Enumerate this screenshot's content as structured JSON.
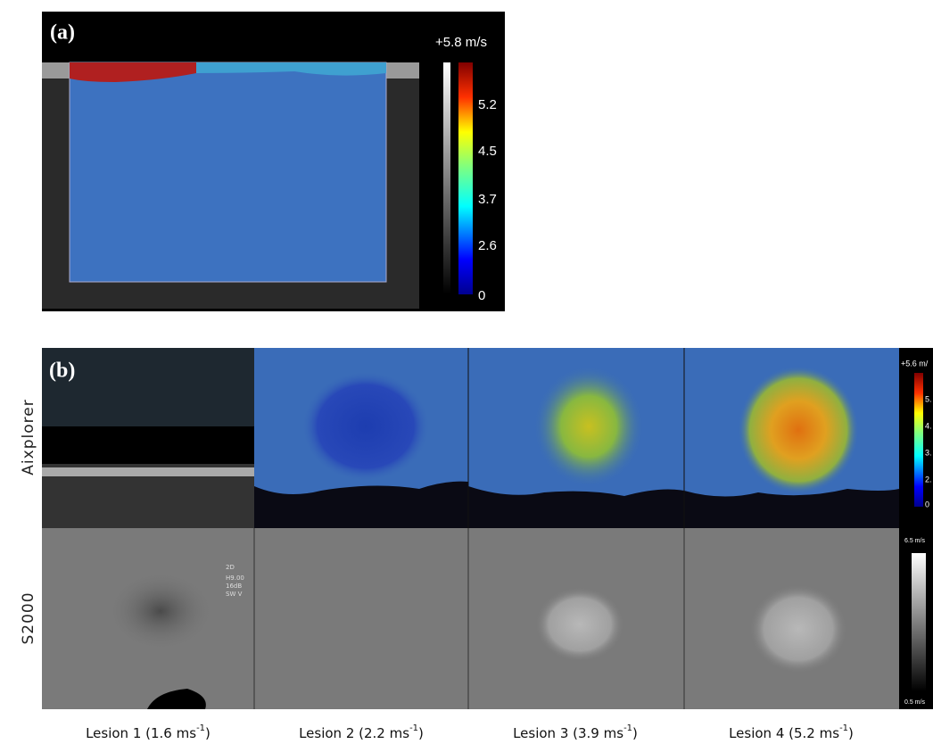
{
  "panel_a": {
    "label": "(a)",
    "colorbar_top": "+5.8 m/s",
    "colorbar_ticks": [
      "5.2",
      "4.5",
      "3.7",
      "2.6",
      "0"
    ]
  },
  "panel_b": {
    "label": "(b)",
    "rows": [
      "Aixplorer",
      "S2000"
    ],
    "aixplorer_colorbar_top": "+5.6 m/",
    "aixplorer_colorbar_ticks": [
      "5.",
      "4.",
      "3.",
      "2.",
      "0"
    ],
    "s2000_colorbar_top": "6.5 m/s",
    "s2000_colorbar_bottom": "0.5 m/s",
    "overlay": [
      "2D",
      "H9.00",
      "16dB",
      "SW V"
    ],
    "lesions": [
      {
        "text": "Lesion 1 (1.6 ms",
        "sup": "-1",
        "close": ")"
      },
      {
        "text": "Lesion 2 (2.2 ms",
        "sup": "-1",
        "close": ")"
      },
      {
        "text": "Lesion 3 (3.9 ms",
        "sup": "-1",
        "close": ")"
      },
      {
        "text": "Lesion 4 (5.2 ms",
        "sup": "-1",
        "close": ")"
      }
    ]
  }
}
